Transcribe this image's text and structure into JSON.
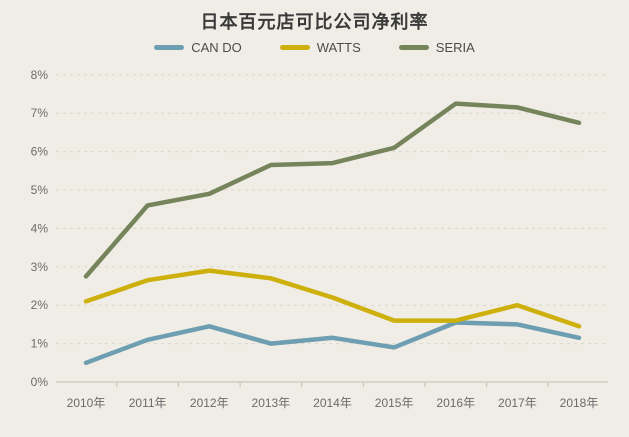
{
  "title": "日本百元店可比公司净利率",
  "chart_data": {
    "type": "line",
    "title": "日本百元店可比公司净利率",
    "categories": [
      "2010年",
      "2011年",
      "2012年",
      "2013年",
      "2014年",
      "2015年",
      "2016年",
      "2017年",
      "2018年"
    ],
    "series": [
      {
        "name": "CAN DO",
        "color": "#6E9EB1",
        "values": [
          0.5,
          1.1,
          1.45,
          1.0,
          1.15,
          0.9,
          1.55,
          1.5,
          1.15
        ]
      },
      {
        "name": "WATTS",
        "color": "#CDB00C",
        "values": [
          2.1,
          2.65,
          2.9,
          2.7,
          2.2,
          1.6,
          1.6,
          2.0,
          1.45
        ]
      },
      {
        "name": "SERIA",
        "color": "#76845C",
        "values": [
          2.75,
          4.6,
          4.9,
          5.65,
          5.7,
          6.1,
          7.25,
          7.15,
          6.75
        ]
      }
    ],
    "xlabel": "",
    "ylabel": "",
    "ylim": [
      0,
      8
    ],
    "ytick_step": 1,
    "ytick_labels": [
      "0%",
      "1%",
      "2%",
      "3%",
      "4%",
      "5%",
      "6%",
      "7%",
      "8%"
    ],
    "grid": "horizontal-dashed",
    "legend_position": "top-center"
  },
  "colors": {
    "background": "#F0EDE6",
    "gridline": "#DBD6CB",
    "axis_line": "#CBC6BC",
    "tick_label": "#6B6B6B",
    "title_text": "#3A3A3A",
    "legend_text": "#4C4C4C"
  }
}
